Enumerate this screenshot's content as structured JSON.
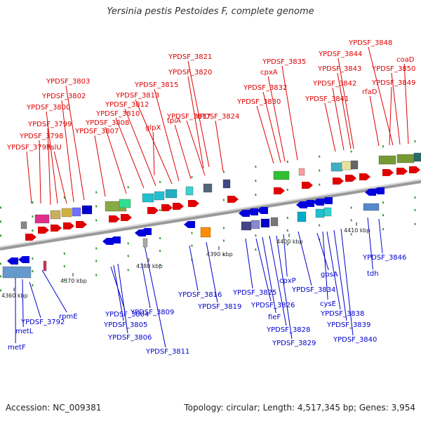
{
  "title": "Yersinia pestis Pestoides F, complete genome",
  "footer": {
    "accession": "Accession: NC_009381",
    "summary": "Topology: circular; Length: 4,517,345 bp; Genes: 3,954"
  },
  "colors": {
    "forward_label": "#dd0000",
    "reverse_label": "#0000cc",
    "backbone": "#aaaaaa"
  },
  "ticks": [
    "4360 kbp",
    "4370 kbp",
    "4380 kbp",
    "4390 kbp",
    "4400 kbp",
    "4410 kbp"
  ],
  "forward_genes": [
    "YPDSF_3797",
    "YPDSF_3798",
    "YPDSF_3799",
    "YPDSF_3800",
    "hslU",
    "YPDSF_3802",
    "YPDSF_3803",
    "YPDSF_3807",
    "YPDSF_3808",
    "YPDSF_3810",
    "YPDSF_3812",
    "YPDSF_3813",
    "glpX",
    "YPDSF_3815",
    "tpiA",
    "YPDSF_3817",
    "YPDSF_3820",
    "YPDSF_3821",
    "YPDSF_3824",
    "YPDSF_3830",
    "YPDSF_3832",
    "cpxA",
    "YPDSF_3835",
    "YPDSF_3841",
    "YPDSF_3842",
    "YPDSF_3843",
    "YPDSF_3844",
    "rfaD",
    "YPDSF_3849",
    "YPDSF_3848",
    "YPDSF_3850",
    "coaD"
  ],
  "reverse_genes": [
    "metF",
    "metL",
    "YPDSF_3792",
    "rpmE",
    "YPDSF_3804",
    "YPDSF_3805",
    "YPDSF_3806",
    "YPDSF_3809",
    "YPDSF_3811",
    "YPDSF_3816",
    "YPDSF_3819",
    "YPDSF_3825",
    "YPDSF_3826",
    "fieF",
    "YPDSF_3828",
    "YPDSF_3829",
    "cpxP",
    "YPDSF_3834",
    "gpsA",
    "cysE",
    "YPDSF_3838",
    "YPDSF_3839",
    "YPDSF_3840",
    "tdh",
    "YPDSF_3846"
  ]
}
